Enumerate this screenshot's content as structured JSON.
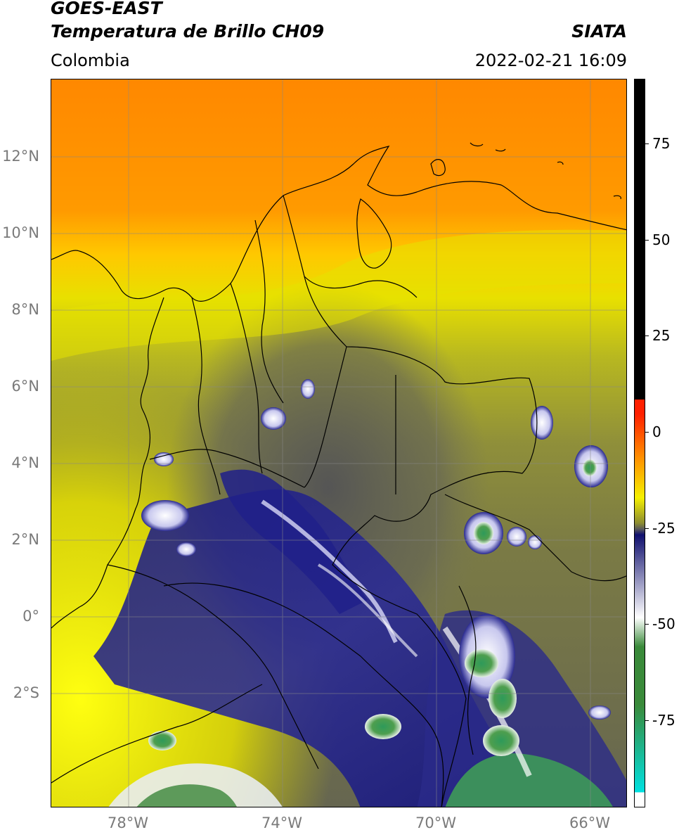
{
  "header": {
    "title_line1": "GOES-EAST",
    "title_line2": "Temperatura de Brillo CH09",
    "org": "SIATA",
    "region": "Colombia",
    "datetime": "2022-02-21 16:09"
  },
  "map_axes": {
    "lat_ticks": [
      "12°N",
      "10°N",
      "8°N",
      "6°N",
      "4°N",
      "2°N",
      "0°",
      "2°S"
    ],
    "lon_ticks": [
      "78°W",
      "74°W",
      "70°W",
      "66°W"
    ],
    "lon_range": [
      -80,
      -65
    ],
    "lat_range": [
      -5,
      14
    ],
    "gridlines": true
  },
  "colorbar": {
    "tick_labels": [
      "75",
      "50",
      "25",
      "0",
      "-25",
      "-50",
      "-75"
    ],
    "tick_values": [
      75,
      50,
      25,
      0,
      -25,
      -50,
      -75
    ],
    "range": [
      -100,
      90
    ],
    "colors": {
      "hot": "#000000",
      "red": "#ff2000",
      "orange": "#ff9000",
      "yellow": "#f5f000",
      "olive": "#8c8c30",
      "gray": "#5a5a5a",
      "navy": "#10106e",
      "white": "#ffffff",
      "green": "#3a8a3a",
      "cyan": "#00e0e0"
    }
  }
}
